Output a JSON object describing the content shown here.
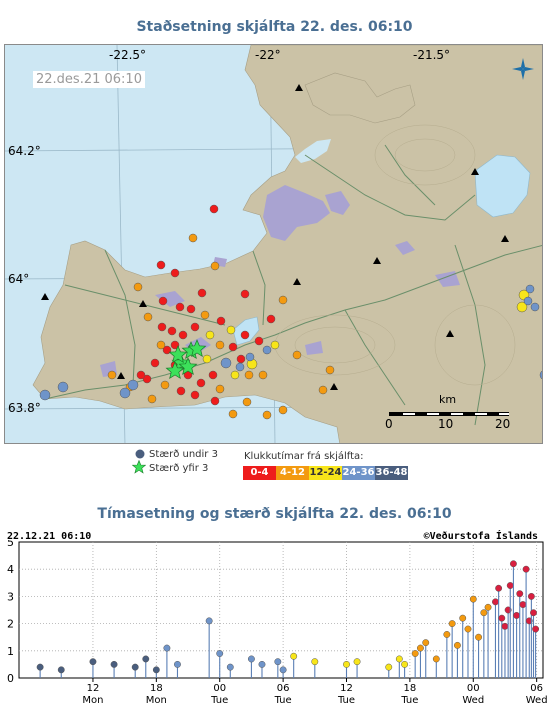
{
  "map": {
    "title": "Staðsetning skjálfta   22. des. 06:10",
    "date_label": "22.des.21  06:10",
    "longitude_labels": [
      "-22.5°",
      "-22°",
      "-21.5°"
    ],
    "latitude_labels": [
      "64.2°",
      "64°",
      "63.8°"
    ],
    "scale": {
      "unit": "km",
      "ticks": [
        "0",
        "10",
        "20"
      ]
    },
    "compass_icon": "compass-rose-icon",
    "colors": {
      "sea": "#cde7f3",
      "land": "#cbc2a6",
      "ice": "#a9a3d1",
      "lake": "#bfe3f5"
    }
  },
  "legend": {
    "small_label": "Stærð undir 3",
    "large_label": "Stærð yfir 3",
    "hours_title": "Klukkutímar frá skjálfta:",
    "hours": [
      {
        "label": "0-4",
        "color": "#ee1c1c"
      },
      {
        "label": "4-12",
        "color": "#f39a10"
      },
      {
        "label": "12-24",
        "color": "#f7e51a"
      },
      {
        "label": "24-36",
        "color": "#6f94c9"
      },
      {
        "label": "36-48",
        "color": "#4a5e7e"
      }
    ]
  },
  "timeline": {
    "title": "Tímasetning og stærð skjálfta   22. des. 06:10",
    "timestamp": "22.12.21 06:10",
    "credit": "©Veðurstofa Íslands",
    "y_ticks": [
      "0",
      "1",
      "2",
      "3",
      "4",
      "5"
    ],
    "x_hour_ticks": [
      "12",
      "18",
      "00",
      "06",
      "12",
      "18",
      "00",
      "06"
    ],
    "x_day_ticks": [
      "Mon",
      "Mon",
      "Tue",
      "Tue",
      "Tue",
      "Tue",
      "Wed",
      "Wed"
    ]
  },
  "chart_data": {
    "type": "scatter",
    "title": "Tímasetning og stærð skjálfta   22. des. 06:10",
    "xlabel": "",
    "ylabel": "",
    "x_unit": "hours before 22.12.21 06:10",
    "ylim": [
      0,
      5
    ],
    "x_tick_labels": [
      "12 Mon",
      "18 Mon",
      "00 Tue",
      "06 Tue",
      "12 Tue",
      "18 Tue",
      "00 Wed",
      "06 Wed"
    ],
    "series": [
      {
        "name": "36-48",
        "color": "#4a5e7e",
        "points": [
          [
            -47,
            0.4
          ],
          [
            -45,
            0.3
          ],
          [
            -42,
            0.6
          ],
          [
            -40,
            0.5
          ],
          [
            -38,
            0.4
          ],
          [
            -37,
            0.7
          ],
          [
            -36,
            0.3
          ]
        ]
      },
      {
        "name": "24-36",
        "color": "#6f94c9",
        "points": [
          [
            -35,
            1.1
          ],
          [
            -34,
            0.5
          ],
          [
            -31,
            2.1
          ],
          [
            -30,
            0.9
          ],
          [
            -29,
            0.4
          ],
          [
            -27,
            0.7
          ],
          [
            -26,
            0.5
          ],
          [
            -24.5,
            0.6
          ],
          [
            -24,
            0.3
          ]
        ]
      },
      {
        "name": "12-24",
        "color": "#f7e51a",
        "points": [
          [
            -23,
            0.8
          ],
          [
            -21,
            0.6
          ],
          [
            -18,
            0.5
          ],
          [
            -17,
            0.6
          ],
          [
            -14,
            0.4
          ],
          [
            -13,
            0.7
          ],
          [
            -12.5,
            0.5
          ]
        ]
      },
      {
        "name": "4-12",
        "color": "#f39a10",
        "points": [
          [
            -11.5,
            0.9
          ],
          [
            -11,
            1.1
          ],
          [
            -10.5,
            1.3
          ],
          [
            -9.5,
            0.7
          ],
          [
            -8.5,
            1.6
          ],
          [
            -8,
            2.0
          ],
          [
            -7.5,
            1.2
          ],
          [
            -7,
            2.2
          ],
          [
            -6.5,
            1.8
          ],
          [
            -6,
            2.9
          ],
          [
            -5.5,
            1.5
          ],
          [
            -5,
            2.4
          ],
          [
            -4.6,
            2.6
          ]
        ]
      },
      {
        "name": "0-4",
        "color": "#d81f3f",
        "points": [
          [
            -3.9,
            2.8
          ],
          [
            -3.6,
            3.3
          ],
          [
            -3.3,
            2.2
          ],
          [
            -3.0,
            1.9
          ],
          [
            -2.7,
            2.5
          ],
          [
            -2.5,
            3.4
          ],
          [
            -2.2,
            4.2
          ],
          [
            -1.9,
            2.3
          ],
          [
            -1.6,
            3.1
          ],
          [
            -1.3,
            2.7
          ],
          [
            -1.0,
            4.0
          ],
          [
            -0.7,
            2.1
          ],
          [
            -0.5,
            3.0
          ],
          [
            -0.3,
            2.4
          ],
          [
            -0.1,
            1.8
          ]
        ]
      }
    ]
  }
}
